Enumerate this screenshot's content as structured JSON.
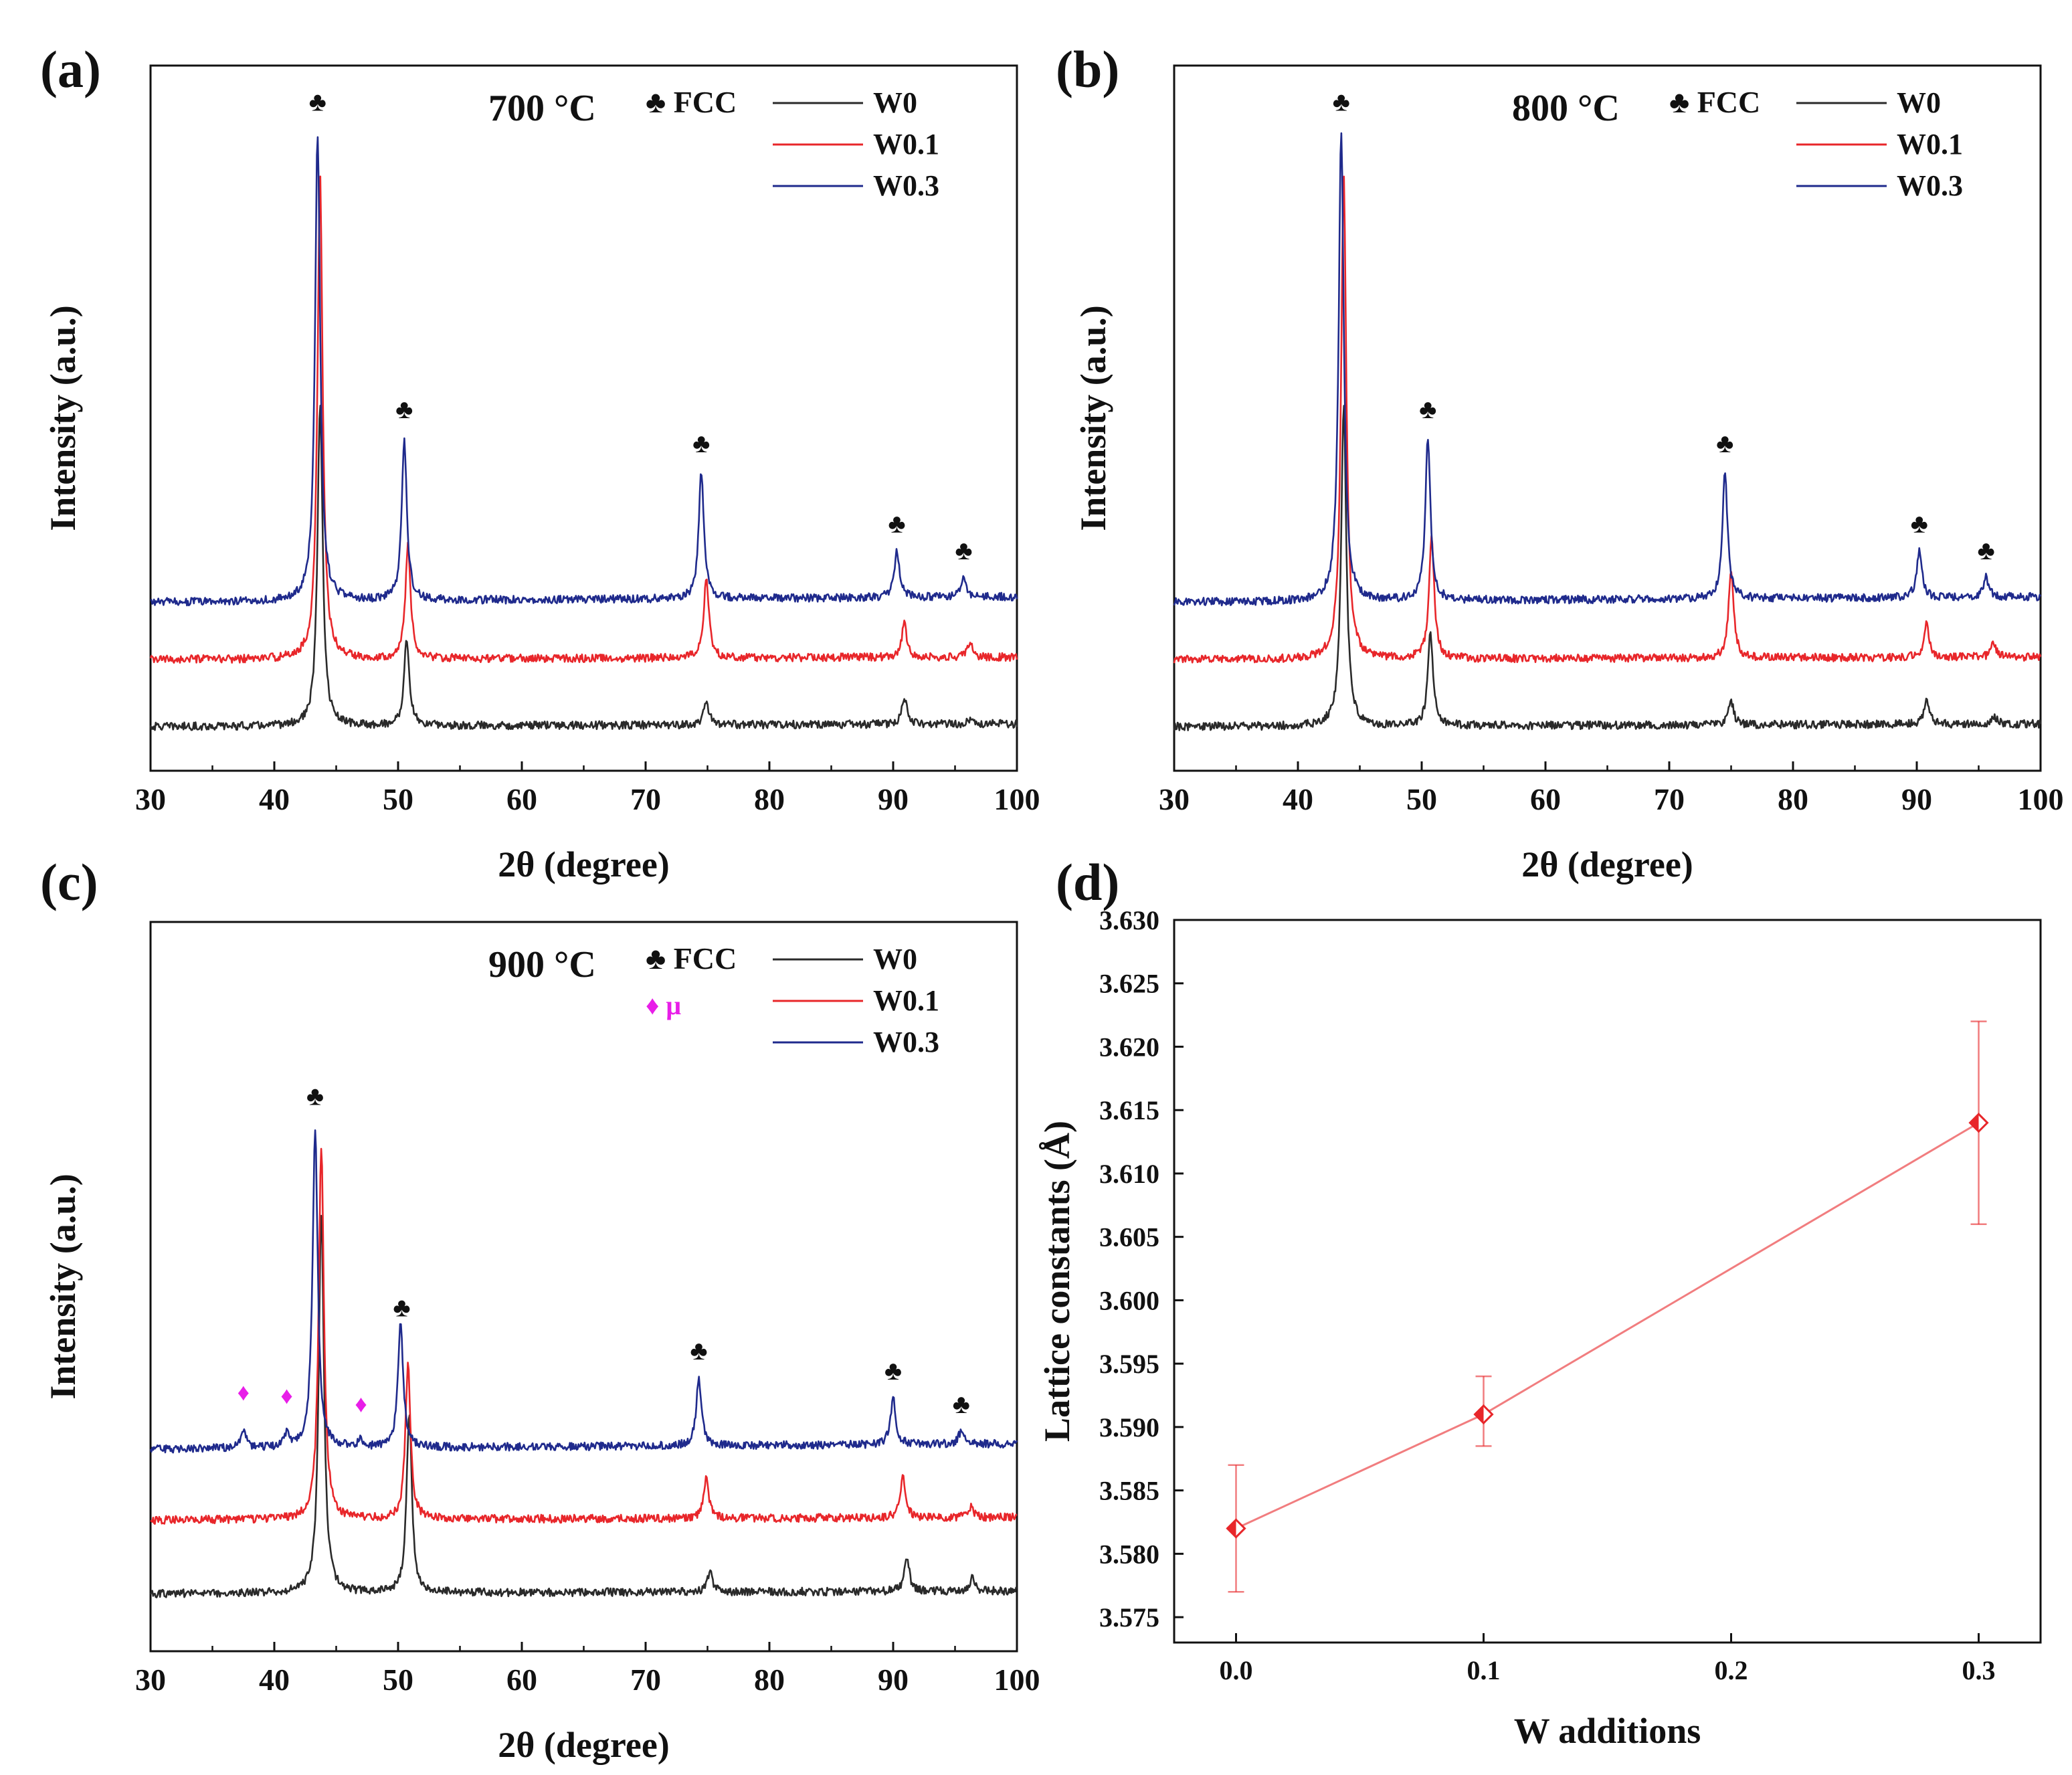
{
  "figure": {
    "xlabel": "2θ (degree)",
    "ylabel": "Intensity (a.u.)",
    "x_ticks": [
      30,
      40,
      50,
      60,
      70,
      80,
      90,
      100
    ],
    "fcc_symbol": "♣",
    "mu_symbol": "♦"
  },
  "chart_data": [
    {
      "type": "line",
      "panel": "(a)",
      "title": "700 °C",
      "xlabel": "2θ (degree)",
      "ylabel": "Intensity (a.u.)",
      "xlim": [
        30,
        100
      ],
      "ylim": [
        0,
        1
      ],
      "legend": [
        "♣ FCC",
        "W0",
        "W0.1",
        "W0.3"
      ],
      "fcc_peaks": [
        43.5,
        50.5,
        74.5,
        90.3,
        95.7
      ],
      "mu_peaks": [],
      "series": [
        {
          "name": "W0",
          "color": "#2a2a2a",
          "baseline": 0.07,
          "peaks": [
            [
              43.7,
              0.48
            ],
            [
              50.7,
              0.13
            ],
            [
              74.9,
              0.035
            ],
            [
              90.9,
              0.04
            ],
            [
              96.3,
              0.01
            ]
          ]
        },
        {
          "name": "W0.1",
          "color": "#e8262a",
          "baseline": 0.17,
          "peaks": [
            [
              43.7,
              0.72
            ],
            [
              50.8,
              0.17
            ],
            [
              74.9,
              0.12
            ],
            [
              90.9,
              0.05
            ],
            [
              96.2,
              0.02
            ]
          ]
        },
        {
          "name": "W0.3",
          "color": "#1f2a8c",
          "baseline": 0.26,
          "peaks": [
            [
              43.5,
              0.7
            ],
            [
              50.5,
              0.24
            ],
            [
              74.5,
              0.19
            ],
            [
              90.3,
              0.07
            ],
            [
              95.7,
              0.03
            ]
          ]
        }
      ]
    },
    {
      "type": "line",
      "panel": "(b)",
      "title": "800 °C",
      "xlabel": "2θ (degree)",
      "ylabel": "Intensity (a.u.)",
      "xlim": [
        30,
        100
      ],
      "ylim": [
        0,
        1
      ],
      "legend": [
        "♣ FCC",
        "W0",
        "W0.1",
        "W0.3"
      ],
      "fcc_peaks": [
        43.5,
        50.5,
        74.5,
        90.2,
        95.6
      ],
      "mu_peaks": [],
      "series": [
        {
          "name": "W0",
          "color": "#2a2a2a",
          "baseline": 0.07,
          "peaks": [
            [
              43.7,
              0.48
            ],
            [
              50.7,
              0.14
            ],
            [
              75.0,
              0.035
            ],
            [
              90.8,
              0.04
            ],
            [
              96.3,
              0.01
            ]
          ]
        },
        {
          "name": "W0.1",
          "color": "#e8262a",
          "baseline": 0.17,
          "peaks": [
            [
              43.7,
              0.72
            ],
            [
              50.8,
              0.18
            ],
            [
              75.0,
              0.13
            ],
            [
              90.8,
              0.05
            ],
            [
              96.2,
              0.02
            ]
          ]
        },
        {
          "name": "W0.3",
          "color": "#1f2a8c",
          "baseline": 0.26,
          "peaks": [
            [
              43.5,
              0.7
            ],
            [
              50.5,
              0.24
            ],
            [
              74.5,
              0.19
            ],
            [
              90.2,
              0.07
            ],
            [
              95.6,
              0.03
            ]
          ]
        }
      ]
    },
    {
      "type": "line",
      "panel": "(c)",
      "title": "900 °C",
      "xlabel": "2θ (degree)",
      "ylabel": "Intensity (a.u.)",
      "xlim": [
        30,
        100
      ],
      "ylim": [
        0,
        1
      ],
      "legend": [
        "♣ FCC",
        "♦ μ",
        "W0",
        "W0.1",
        "W0.3"
      ],
      "fcc_peaks": [
        43.3,
        50.3,
        74.3,
        90.0,
        95.5
      ],
      "mu_peaks": [
        37.5,
        41.0,
        47.0
      ],
      "series": [
        {
          "name": "W0",
          "color": "#2a2a2a",
          "baseline": 0.09,
          "peaks": [
            [
              43.8,
              0.57
            ],
            [
              50.9,
              0.27
            ],
            [
              75.2,
              0.03
            ],
            [
              91.1,
              0.05
            ],
            [
              96.4,
              0.02
            ]
          ]
        },
        {
          "name": "W0.1",
          "color": "#e8262a",
          "baseline": 0.2,
          "peaks": [
            [
              43.8,
              0.56
            ],
            [
              50.8,
              0.23
            ],
            [
              74.9,
              0.06
            ],
            [
              90.8,
              0.06
            ],
            [
              96.3,
              0.015
            ]
          ]
        },
        {
          "name": "W0.3",
          "color": "#1f2a8c",
          "baseline": 0.31,
          "peaks": [
            [
              37.5,
              0.03
            ],
            [
              41.0,
              0.02
            ],
            [
              43.3,
              0.48
            ],
            [
              47.0,
              0.01
            ],
            [
              50.2,
              0.19
            ],
            [
              74.3,
              0.1
            ],
            [
              90.0,
              0.07
            ],
            [
              95.5,
              0.02
            ]
          ]
        }
      ]
    },
    {
      "type": "line",
      "panel": "(d)",
      "title": "",
      "xlabel": "W additions",
      "ylabel": "Lattice constants (Å)",
      "xlim": [
        -0.025,
        0.325
      ],
      "ylim": [
        3.573,
        3.63
      ],
      "x_ticks": [
        "0.0",
        "0.1",
        "0.2",
        "0.3"
      ],
      "y_ticks": [
        "3.575",
        "3.580",
        "3.585",
        "3.590",
        "3.595",
        "3.600",
        "3.605",
        "3.610",
        "3.615",
        "3.620",
        "3.625",
        "3.630"
      ],
      "color": "#e8262a",
      "series": [
        {
          "name": "Lattice constant",
          "x": [
            0.0,
            0.1,
            0.3
          ],
          "y": [
            3.582,
            3.591,
            3.614
          ],
          "yerr_low": [
            3.577,
            3.5885,
            3.606
          ],
          "yerr_high": [
            3.587,
            3.594,
            3.622
          ]
        }
      ]
    }
  ]
}
